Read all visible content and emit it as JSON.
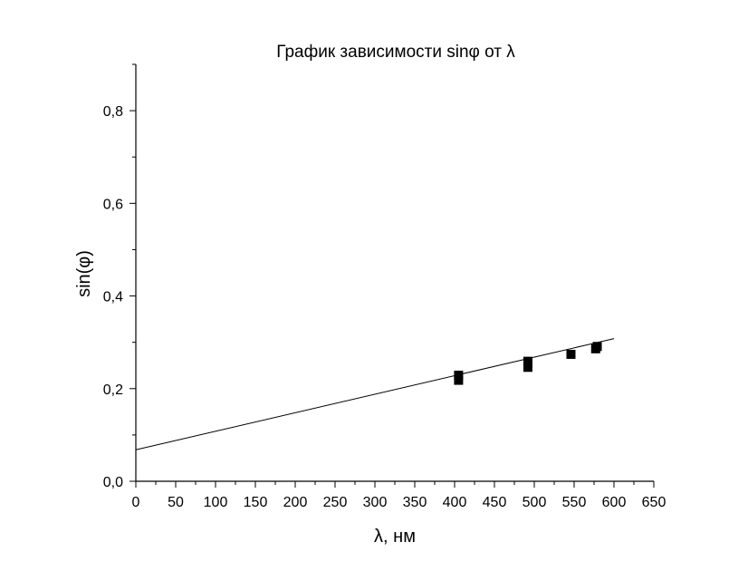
{
  "chart_data": {
    "type": "scatter",
    "title": "График зависимости sinφ от λ",
    "xlabel": "λ, нм",
    "ylabel": "sin(φ)",
    "xlim": [
      0,
      650
    ],
    "ylim": [
      0,
      0.9
    ],
    "x_ticks": [
      0,
      50,
      100,
      150,
      200,
      250,
      300,
      350,
      400,
      450,
      500,
      550,
      600,
      650
    ],
    "x_tick_labels": [
      "0",
      "50",
      "100",
      "150",
      "200",
      "250",
      "300",
      "350",
      "400",
      "450",
      "500",
      "550",
      "600",
      "650"
    ],
    "y_ticks": [
      0,
      0.2,
      0.4,
      0.6,
      0.8
    ],
    "y_tick_labels": [
      "0,0",
      "0,2",
      "0,4",
      "0,6",
      "0,8"
    ],
    "grid": false,
    "series": [
      {
        "type": "scatter",
        "marker": "square",
        "color": "#000000",
        "x": [
          405,
          405,
          492,
          492,
          546,
          577,
          579
        ],
        "y": [
          0.218,
          0.229,
          0.246,
          0.259,
          0.274,
          0.286,
          0.291
        ]
      },
      {
        "type": "line",
        "fit": "linear",
        "color": "#000000",
        "x": [
          0,
          600
        ],
        "y": [
          0.068,
          0.308
        ]
      }
    ]
  }
}
